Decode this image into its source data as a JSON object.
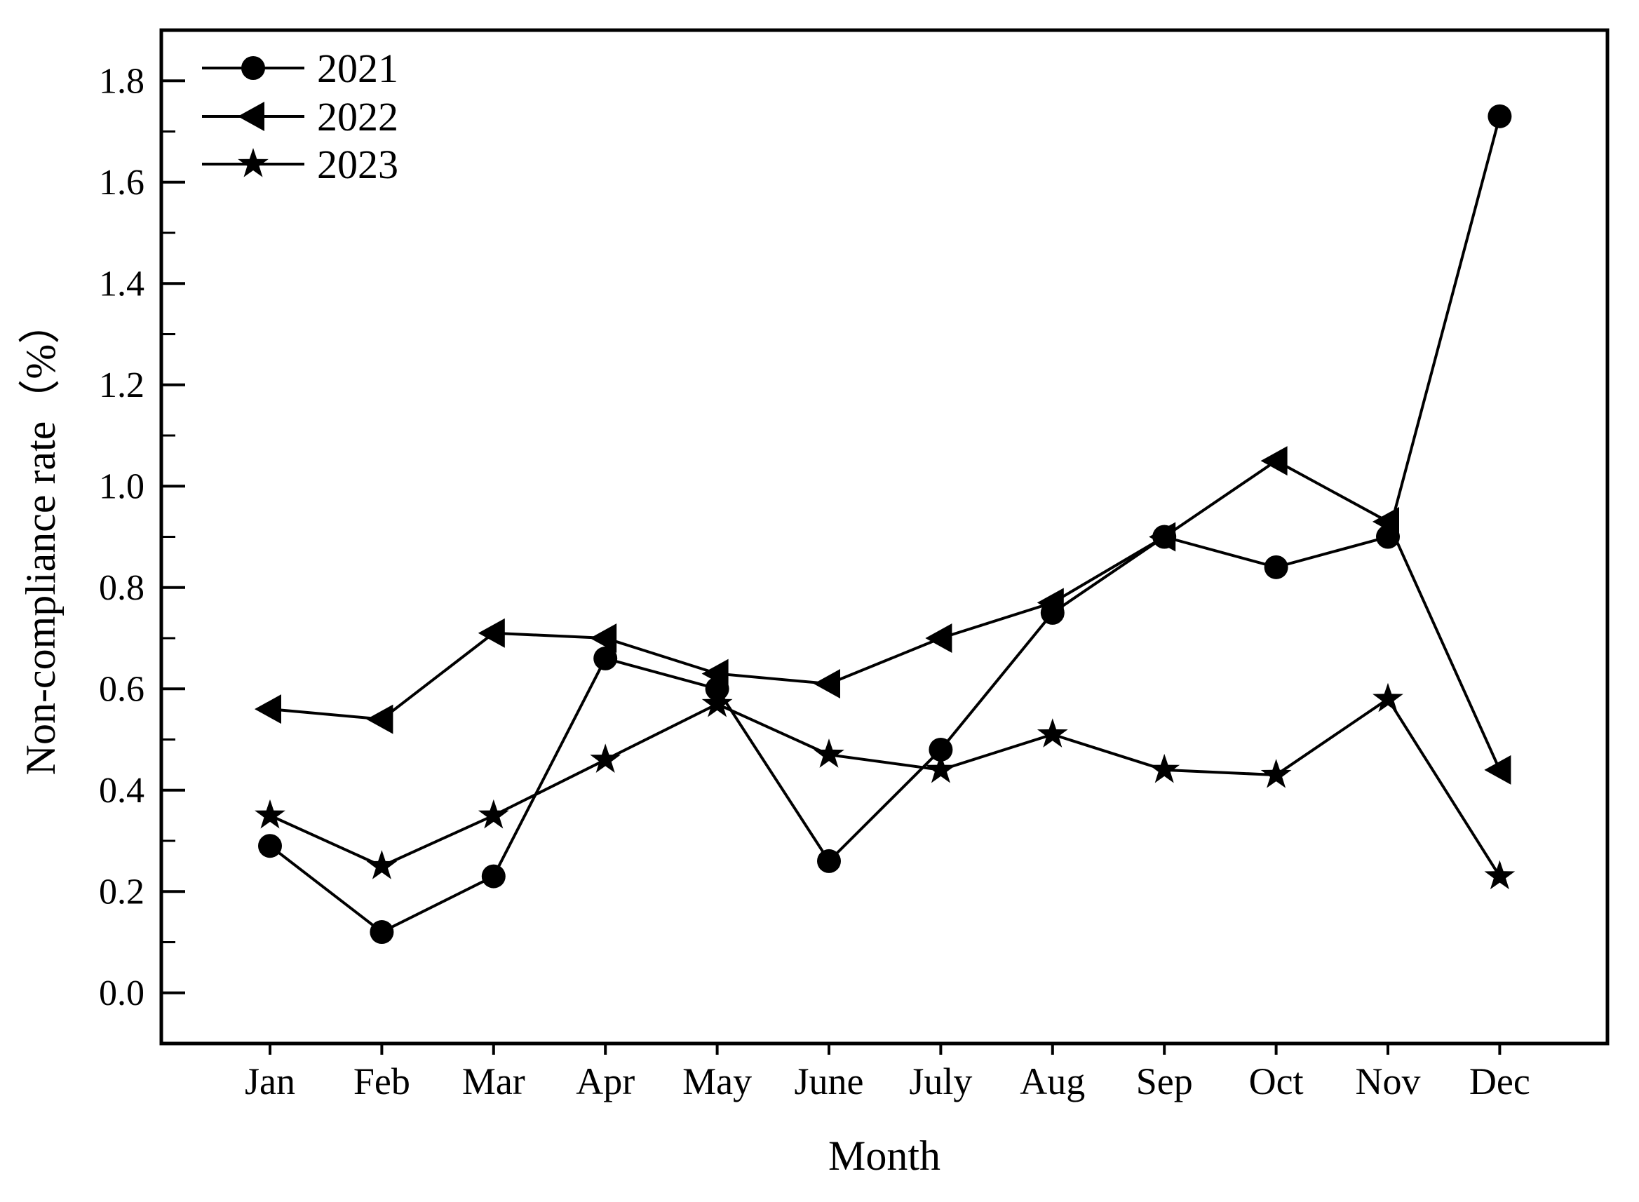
{
  "chart_data": {
    "type": "line",
    "title": "",
    "xlabel": "Month",
    "ylabel": "Non-compliance rate（%）",
    "x_categories": [
      "Jan",
      "Feb",
      "Mar",
      "Apr",
      "May",
      "June",
      "July",
      "Aug",
      "Sep",
      "Oct",
      "Nov",
      "Dec"
    ],
    "ylim": [
      -0.1,
      1.9
    ],
    "yticks": [
      0.0,
      0.2,
      0.4,
      0.6,
      0.8,
      1.0,
      1.2,
      1.4,
      1.6,
      1.8
    ],
    "ytick_minor_step": 0.1,
    "ytick_decimals": 1,
    "grid": false,
    "legend_position": "top-left",
    "frame": "full-box",
    "line_color": "#000000",
    "background_color": "#ffffff",
    "series": [
      {
        "name": "2021",
        "marker": "circle",
        "color": "#000000",
        "values": [
          0.29,
          0.12,
          0.23,
          0.66,
          0.6,
          0.26,
          0.48,
          0.75,
          0.9,
          0.84,
          0.9,
          1.73
        ]
      },
      {
        "name": "2022",
        "marker": "triangle-left",
        "color": "#000000",
        "values": [
          0.56,
          0.54,
          0.71,
          0.7,
          0.63,
          0.61,
          0.7,
          0.77,
          0.9,
          1.05,
          0.93,
          0.44
        ]
      },
      {
        "name": "2023",
        "marker": "star",
        "color": "#000000",
        "values": [
          0.35,
          0.25,
          0.35,
          0.46,
          0.57,
          0.47,
          0.44,
          0.51,
          0.44,
          0.43,
          0.58,
          0.23
        ]
      }
    ]
  }
}
